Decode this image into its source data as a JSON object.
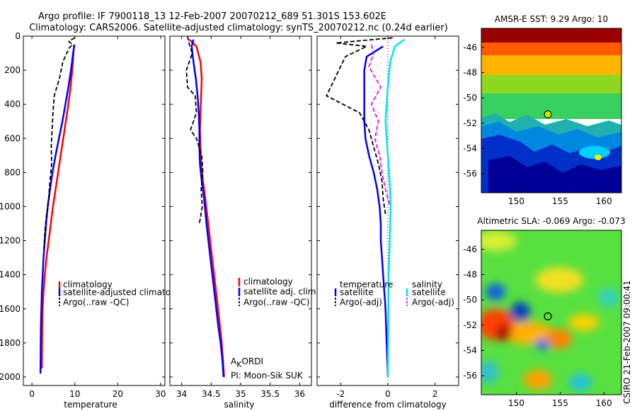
{
  "figure": {
    "title_line1": "Argo profile: IF 7900118_13 12-Feb-2007 20070212_689 51.301S 153.602E",
    "title_line2": "Climatology: CARS2006. Satellite-adjusted climatology: synTS_20070212.nc (0.24d earlier)",
    "footer_vertical": "CSIRO 21-Feb-2007 09:00:41"
  },
  "colors": {
    "climatology": "#ff0000",
    "satellite": "#0000ff",
    "argo": "#000000",
    "sat_salinity": "#00e5ee",
    "argo_salinity": "#ff00ff"
  },
  "chart_data": [
    {
      "id": "temperature",
      "type": "line",
      "xlabel": "temperature",
      "xlim": [
        -2,
        31
      ],
      "ylim": [
        0,
        2050
      ],
      "y_inverted": true,
      "xticks": [
        0,
        10,
        20,
        30
      ],
      "yticks": [
        0,
        200,
        400,
        600,
        800,
        1000,
        1200,
        1400,
        1600,
        1800,
        2000
      ],
      "legend": [
        "climatology",
        "satellite-adjusted climatology",
        "Argo(..raw -QC)"
      ],
      "series": [
        {
          "name": "climatology",
          "color": "#ff0000",
          "dash": "solid",
          "x": [
            9.8,
            9.7,
            9.4,
            9.0,
            8.5,
            7.9,
            7.3,
            6.7,
            6.1,
            5.5,
            4.9,
            4.4,
            3.9,
            3.4,
            3.0,
            2.7,
            2.5,
            2.4,
            2.35,
            2.3
          ],
          "y": [
            50,
            100,
            200,
            300,
            400,
            500,
            600,
            700,
            800,
            900,
            1000,
            1100,
            1200,
            1300,
            1400,
            1500,
            1600,
            1700,
            1800,
            1950
          ]
        },
        {
          "name": "satellite-adjusted climatology",
          "color": "#0000ff",
          "dash": "solid",
          "x": [
            9.9,
            9.6,
            9.1,
            8.5,
            7.8,
            7.1,
            6.3,
            5.5,
            4.8,
            4.2,
            3.7,
            3.3,
            3.0,
            2.7,
            2.5,
            2.3,
            2.2,
            2.1,
            2.05,
            2.0
          ],
          "y": [
            50,
            100,
            200,
            300,
            400,
            500,
            600,
            700,
            800,
            900,
            1000,
            1100,
            1200,
            1300,
            1400,
            1500,
            1600,
            1700,
            1800,
            1980
          ]
        },
        {
          "name": "Argo(..raw -QC)",
          "color": "#000000",
          "dash": "dashed",
          "x": [
            10.0,
            8.6,
            9.4,
            8.7,
            7.2,
            6.4,
            5.2,
            4.9,
            4.7,
            4.5,
            4.6,
            4.2,
            3.9,
            3.4,
            3.0,
            2.8
          ],
          "y": [
            10,
            30,
            50,
            70,
            150,
            250,
            350,
            450,
            550,
            650,
            750,
            850,
            950,
            1050,
            1150,
            1250
          ]
        }
      ]
    },
    {
      "id": "salinity",
      "type": "line",
      "xlabel": "salinity",
      "xlim": [
        33.8,
        36.2
      ],
      "ylim": [
        0,
        2050
      ],
      "y_inverted": true,
      "xticks": [
        34,
        34.5,
        35,
        35.5,
        36
      ],
      "yticks": [
        0,
        200,
        400,
        600,
        800,
        1000,
        1200,
        1400,
        1600,
        1800,
        2000
      ],
      "legend": [
        "climatology",
        "satellite adj. clim.",
        "Argo(..raw -QC)"
      ],
      "annotation_main": "A",
      "annotation_sub": "K",
      "annotation_rest": "ORDI",
      "pi_text": "PI: Moon-Sik SUK",
      "series": [
        {
          "name": "climatology",
          "color": "#ff0000",
          "dash": "solid",
          "x": [
            34.13,
            34.25,
            34.32,
            34.34,
            34.33,
            34.32,
            34.31,
            34.32,
            34.33,
            34.36,
            34.4,
            34.45,
            34.5,
            34.55,
            34.6,
            34.65,
            34.68,
            34.7,
            34.71,
            34.72
          ],
          "y": [
            20,
            60,
            150,
            250,
            350,
            450,
            550,
            650,
            750,
            850,
            950,
            1100,
            1250,
            1400,
            1550,
            1700,
            1800,
            1900,
            1950,
            2000
          ]
        },
        {
          "name": "satellite adj. clim.",
          "color": "#0000ff",
          "dash": "solid",
          "x": [
            34.2,
            34.17,
            34.2,
            34.24,
            34.27,
            34.29,
            34.3,
            34.3,
            34.31,
            34.34,
            34.38,
            34.42,
            34.47,
            34.52,
            34.57,
            34.62,
            34.66,
            34.69,
            34.7,
            34.71
          ],
          "y": [
            20,
            60,
            150,
            250,
            350,
            450,
            550,
            650,
            750,
            850,
            950,
            1100,
            1250,
            1400,
            1550,
            1700,
            1800,
            1900,
            1950,
            2000
          ]
        },
        {
          "name": "Argo(..raw -QC)",
          "color": "#000000",
          "dash": "dashed",
          "x": [
            34.1,
            34.13,
            34.18,
            34.08,
            34.1,
            34.23,
            34.25,
            34.15,
            34.25,
            34.34,
            34.36,
            34.33,
            34.35,
            34.3
          ],
          "y": [
            0,
            50,
            100,
            200,
            300,
            350,
            450,
            550,
            600,
            700,
            800,
            900,
            1000,
            1100
          ]
        }
      ]
    },
    {
      "id": "difference",
      "type": "line",
      "xlabel": "difference from climatology",
      "xlim": [
        -3,
        3
      ],
      "ylim": [
        0,
        2050
      ],
      "y_inverted": true,
      "xticks": [
        -2,
        0,
        2
      ],
      "yticks": [
        0,
        200,
        400,
        600,
        800,
        1000,
        1200,
        1400,
        1600,
        1800,
        2000
      ],
      "legend_left_header": "temperature",
      "legend_right_header": "salinity",
      "legend_left": [
        "satellite",
        "Argo(-adj)"
      ],
      "legend_right": [
        "satellite",
        "Argo(-adj)"
      ],
      "series": [
        {
          "name": "temperature satellite",
          "color": "#0000ff",
          "dash": "solid",
          "x": [
            -0.2,
            -0.9,
            -1.0,
            -1.0,
            -1.0,
            -1.0,
            -0.95,
            -0.8,
            -0.6,
            -0.45,
            -0.35,
            -0.3,
            -0.3,
            -0.25,
            -0.2,
            -0.15,
            -0.1,
            -0.05,
            0
          ],
          "y": [
            60,
            120,
            200,
            300,
            400,
            500,
            600,
            700,
            800,
            900,
            1000,
            1100,
            1200,
            1300,
            1400,
            1500,
            1600,
            1800,
            2000
          ]
        },
        {
          "name": "temperature Argo(-adj)",
          "color": "#000000",
          "dash": "dashed",
          "x": [
            0.2,
            -2.2,
            -0.9,
            -1.8,
            -2.6,
            -1.2,
            -0.8,
            -0.6,
            -0.4,
            -0.25,
            -0.2,
            -0.1
          ],
          "y": [
            10,
            40,
            60,
            120,
            350,
            450,
            550,
            650,
            750,
            850,
            950,
            1050
          ]
        },
        {
          "name": "salinity satellite",
          "color": "#00e5ee",
          "dash": "solid",
          "x": [
            0.7,
            0.3,
            0.1,
            0.0,
            -0.05,
            -0.1,
            -0.05,
            0.0,
            0.05,
            0.1,
            0.12,
            0.1,
            0.08,
            0.06,
            0.03,
            0.02,
            0.0
          ],
          "y": [
            20,
            60,
            150,
            300,
            400,
            500,
            600,
            700,
            800,
            900,
            1000,
            1100,
            1200,
            1300,
            1400,
            1600,
            2000
          ]
        },
        {
          "name": "salinity Argo(-adj)",
          "color": "#ff00ff",
          "dash": "dashed",
          "x": [
            -0.7,
            -0.6,
            -0.8,
            -0.3,
            -0.7,
            -0.4,
            -0.55,
            -0.35,
            -0.25,
            -0.1,
            0.1
          ],
          "y": [
            50,
            100,
            180,
            300,
            400,
            500,
            600,
            700,
            800,
            900,
            1000
          ]
        }
      ]
    },
    {
      "id": "sst_map",
      "type": "heatmap",
      "title": "AMSR-E SST: 9.29 Argo: 10",
      "xlim": [
        146,
        162
      ],
      "ylim": [
        -57.5,
        -44.5
      ],
      "xticks": [
        150,
        155,
        160
      ],
      "yticks": [
        -46,
        -48,
        -50,
        -52,
        -54,
        -56
      ],
      "marker": {
        "lon": 153.602,
        "lat": -51.301
      }
    },
    {
      "id": "sla_map",
      "type": "heatmap",
      "title": "Altimetric SLA: -0.069 Argo: -0.073",
      "xlim": [
        146,
        162
      ],
      "ylim": [
        -57.5,
        -44.5
      ],
      "xticks": [
        150,
        155,
        160
      ],
      "yticks": [
        -46,
        -48,
        -50,
        -52,
        -54,
        -56
      ],
      "marker": {
        "lon": 153.602,
        "lat": -51.301
      }
    }
  ]
}
